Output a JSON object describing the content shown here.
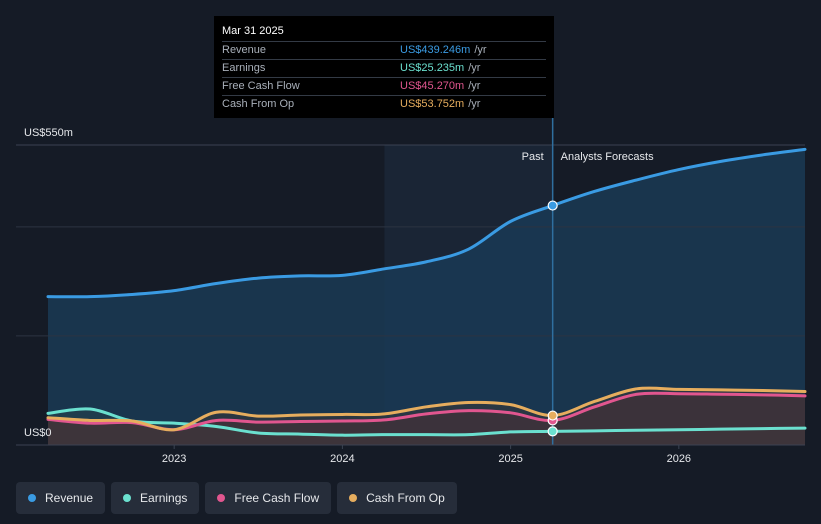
{
  "tooltip": {
    "date": "Mar 31 2025",
    "rows": [
      {
        "label": "Revenue",
        "value": "US$439.246m",
        "unit": "/yr",
        "color": "#3a9be3"
      },
      {
        "label": "Earnings",
        "value": "US$25.235m",
        "unit": "/yr",
        "color": "#6be0cf"
      },
      {
        "label": "Free Cash Flow",
        "value": "US$45.270m",
        "unit": "/yr",
        "color": "#e1568f"
      },
      {
        "label": "Cash From Op",
        "value": "US$53.752m",
        "unit": "/yr",
        "color": "#e6ad5e"
      }
    ]
  },
  "legend": [
    {
      "label": "Revenue",
      "color": "#3a9be3"
    },
    {
      "label": "Earnings",
      "color": "#6be0cf"
    },
    {
      "label": "Free Cash Flow",
      "color": "#e1568f"
    },
    {
      "label": "Cash From Op",
      "color": "#e6ad5e"
    }
  ],
  "chart_data": {
    "type": "area",
    "title": "",
    "ylabel_top": "US$550m",
    "ylabel_bottom": "US$0",
    "ylim": [
      0,
      550
    ],
    "xlim": [
      2022.25,
      2026.75
    ],
    "xticks": [
      2023,
      2024,
      2025,
      2026
    ],
    "xtick_labels": [
      "2023",
      "2024",
      "2025",
      "2026"
    ],
    "past_label": "Past",
    "forecast_label": "Analysts Forecasts",
    "divider_x": 2025.25,
    "highlight_start_x": 2024.25,
    "series": [
      {
        "name": "Revenue",
        "color": "#3a9be3",
        "x": [
          2022.25,
          2022.5,
          2022.75,
          2023.0,
          2023.25,
          2023.5,
          2023.75,
          2024.0,
          2024.25,
          2024.5,
          2024.75,
          2025.0,
          2025.25,
          2025.5,
          2025.75,
          2026.0,
          2026.25,
          2026.5,
          2026.75
        ],
        "y": [
          272,
          272,
          276,
          283,
          296,
          306,
          310,
          311,
          323,
          336,
          359,
          410,
          439,
          465,
          486,
          505,
          520,
          532,
          542
        ]
      },
      {
        "name": "Earnings",
        "color": "#6be0cf",
        "x": [
          2022.25,
          2022.5,
          2022.75,
          2023.0,
          2023.25,
          2023.5,
          2023.75,
          2024.0,
          2024.25,
          2024.5,
          2024.75,
          2025.0,
          2025.25,
          2025.5,
          2025.75,
          2026.0,
          2026.25,
          2026.5,
          2026.75
        ],
        "y": [
          58,
          66,
          44,
          40,
          34,
          22,
          20,
          18,
          19,
          19,
          19,
          24,
          25,
          26,
          27,
          28,
          29,
          30,
          31
        ]
      },
      {
        "name": "Free Cash Flow",
        "color": "#e1568f",
        "x": [
          2022.25,
          2022.5,
          2022.75,
          2023.0,
          2023.25,
          2023.5,
          2023.75,
          2024.0,
          2024.25,
          2024.5,
          2024.75,
          2025.0,
          2025.25,
          2025.5,
          2025.75,
          2026.0,
          2026.25,
          2026.5,
          2026.75
        ],
        "y": [
          47,
          40,
          41,
          28,
          45,
          42,
          43,
          44,
          46,
          57,
          63,
          59,
          45,
          70,
          93,
          94,
          93,
          92,
          90
        ]
      },
      {
        "name": "Cash From Op",
        "color": "#e6ad5e",
        "x": [
          2022.25,
          2022.5,
          2022.75,
          2023.0,
          2023.25,
          2023.5,
          2023.75,
          2024.0,
          2024.25,
          2024.5,
          2024.75,
          2025.0,
          2025.25,
          2025.5,
          2025.75,
          2026.0,
          2026.25,
          2026.5,
          2026.75
        ],
        "y": [
          50,
          45,
          44,
          28,
          60,
          53,
          55,
          56,
          57,
          70,
          78,
          74,
          54,
          80,
          103,
          102,
          101,
          100,
          98
        ]
      }
    ]
  }
}
